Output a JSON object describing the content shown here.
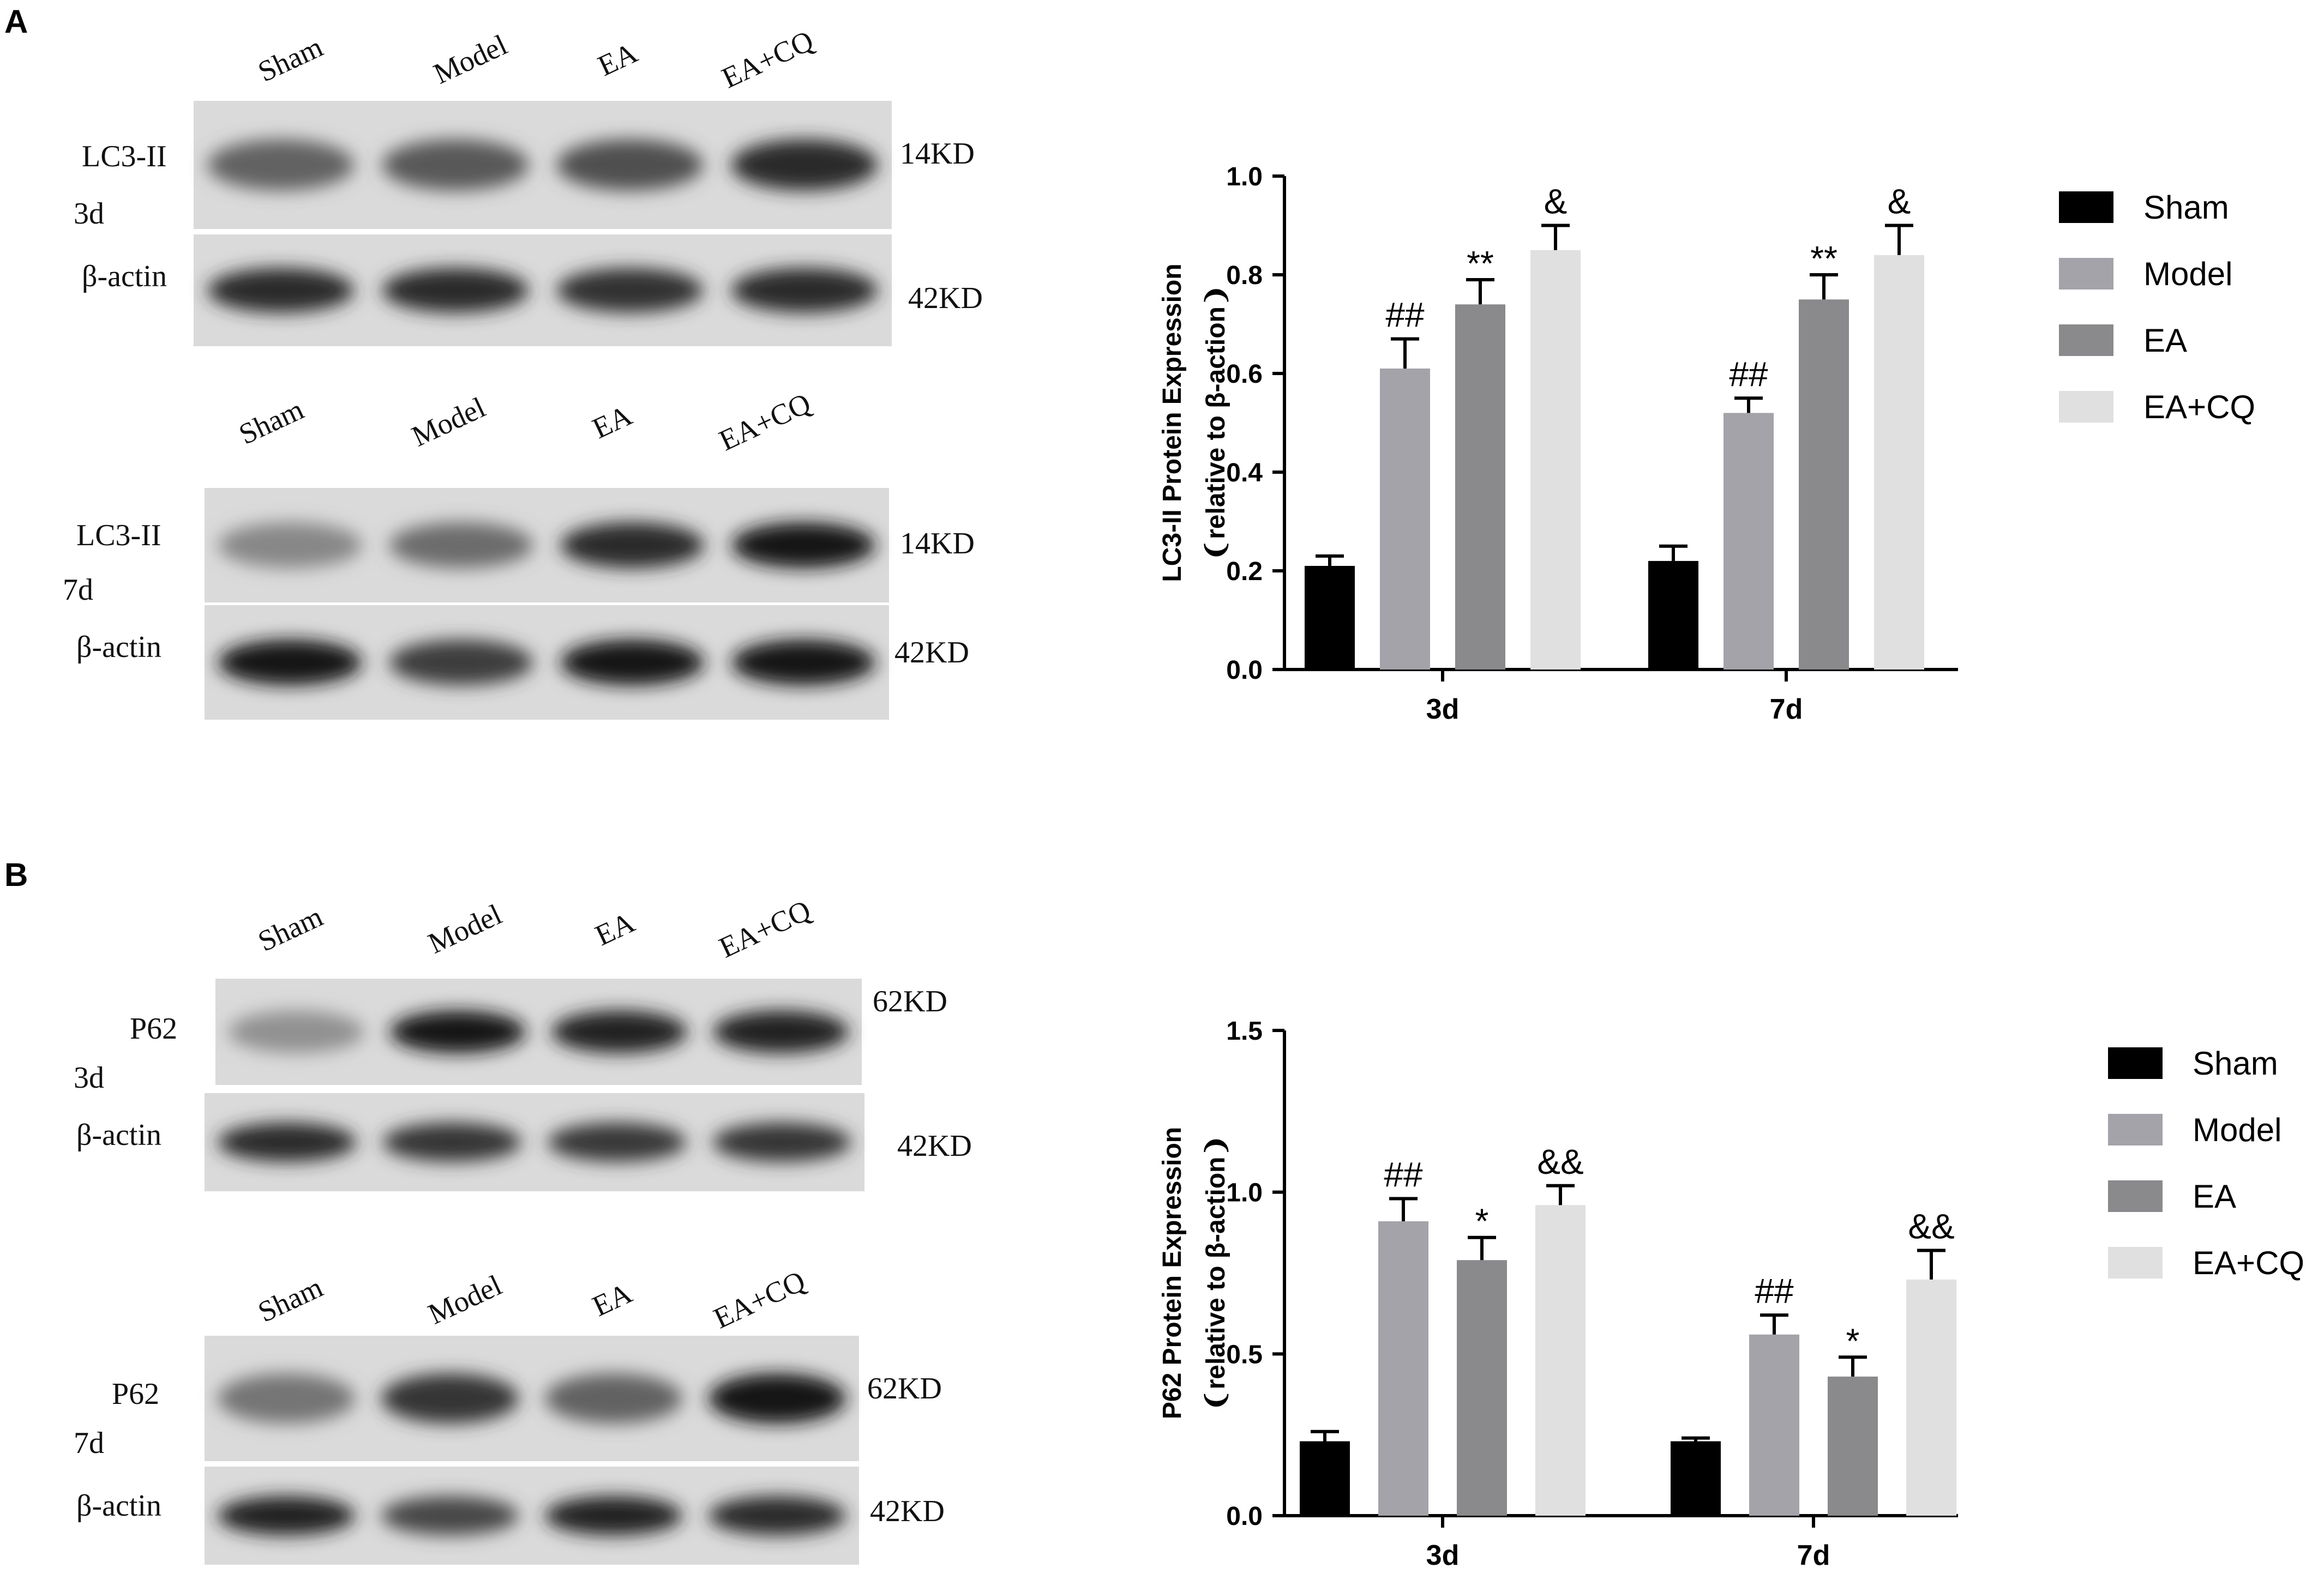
{
  "panels": [
    {
      "label": "A",
      "blots": [
        {
          "lanes": [
            "Sham",
            "Model",
            "EA",
            "EA+CQ"
          ],
          "rows": [
            {
              "protein": "LC3-II",
              "size": "14KD",
              "intensities": [
                0.55,
                0.6,
                0.65,
                0.85
              ]
            },
            {
              "protein": "β-actin",
              "size": "42KD",
              "intensities": [
                0.85,
                0.85,
                0.82,
                0.85
              ]
            }
          ],
          "time": "3d"
        },
        {
          "lanes": [
            "Sham",
            "Model",
            "EA",
            "EA+CQ"
          ],
          "rows": [
            {
              "protein": "LC3-II",
              "size": "14KD",
              "intensities": [
                0.35,
                0.5,
                0.85,
                0.95
              ]
            },
            {
              "protein": "β-actin",
              "size": "42KD",
              "intensities": [
                0.95,
                0.75,
                0.95,
                0.95
              ]
            }
          ],
          "time": "7d"
        }
      ]
    },
    {
      "label": "B",
      "blots": [
        {
          "lanes": [
            "Sham",
            "Model",
            "EA",
            "EA+CQ"
          ],
          "rows": [
            {
              "protein": "P62",
              "size": "62KD",
              "intensities": [
                0.3,
                0.95,
                0.9,
                0.9
              ]
            },
            {
              "protein": "β-actin",
              "size": "42KD",
              "intensities": [
                0.85,
                0.8,
                0.78,
                0.8
              ]
            }
          ],
          "time": "3d"
        },
        {
          "lanes": [
            "Sham",
            "Model",
            "EA",
            "EA+CQ"
          ],
          "rows": [
            {
              "protein": "P62",
              "size": "62KD",
              "intensities": [
                0.45,
                0.8,
                0.55,
                0.95
              ]
            },
            {
              "protein": "β-actin",
              "size": "42KD",
              "intensities": [
                0.9,
                0.7,
                0.9,
                0.85
              ]
            }
          ],
          "time": "7d"
        }
      ]
    }
  ],
  "chart_data": [
    {
      "type": "bar",
      "ylabel_line1": "LC3-II Protein Expression",
      "ylabel_line2": "❨relative to β-action❩",
      "categories": [
        "3d",
        "7d"
      ],
      "ylim": [
        0,
        1.0
      ],
      "yticks": [
        "0.0",
        "0.2",
        "0.4",
        "0.6",
        "0.8",
        "1.0"
      ],
      "legend_position": "right",
      "series": [
        {
          "name": "Sham",
          "color": "#000000",
          "values": [
            0.21,
            0.22
          ],
          "errors": [
            0.02,
            0.03
          ],
          "annotations": [
            "",
            ""
          ]
        },
        {
          "name": "Model",
          "color": "#a3a3a9",
          "values": [
            0.61,
            0.52
          ],
          "errors": [
            0.06,
            0.03
          ],
          "annotations": [
            "##",
            "##"
          ]
        },
        {
          "name": "EA",
          "color": "#8a8a8c",
          "values": [
            0.74,
            0.75
          ],
          "errors": [
            0.05,
            0.05
          ],
          "annotations": [
            "**",
            "**"
          ]
        },
        {
          "name": "EA+CQ",
          "color": "#e0e0e0",
          "values": [
            0.85,
            0.84
          ],
          "errors": [
            0.05,
            0.06
          ],
          "annotations": [
            "&",
            "&"
          ]
        }
      ]
    },
    {
      "type": "bar",
      "ylabel_line1": "P62 Protein Expression",
      "ylabel_line2": "❨relative to β-action❩",
      "categories": [
        "3d",
        "7d"
      ],
      "ylim": [
        0,
        1.5
      ],
      "yticks": [
        "0.0",
        "0.5",
        "1.0",
        "1.5"
      ],
      "legend_position": "right",
      "series": [
        {
          "name": "Sham",
          "color": "#000000",
          "values": [
            0.23,
            0.23
          ],
          "errors": [
            0.03,
            0.01
          ],
          "annotations": [
            "",
            ""
          ]
        },
        {
          "name": "Model",
          "color": "#a3a3a9",
          "values": [
            0.91,
            0.56
          ],
          "errors": [
            0.07,
            0.06
          ],
          "annotations": [
            "##",
            "##"
          ]
        },
        {
          "name": "EA",
          "color": "#8a8a8c",
          "values": [
            0.79,
            0.43
          ],
          "errors": [
            0.07,
            0.06
          ],
          "annotations": [
            "*",
            "*"
          ]
        },
        {
          "name": "EA+CQ",
          "color": "#e0e0e0",
          "values": [
            0.96,
            0.73
          ],
          "errors": [
            0.06,
            0.09
          ],
          "annotations": [
            "&&",
            "&&"
          ]
        }
      ]
    }
  ]
}
